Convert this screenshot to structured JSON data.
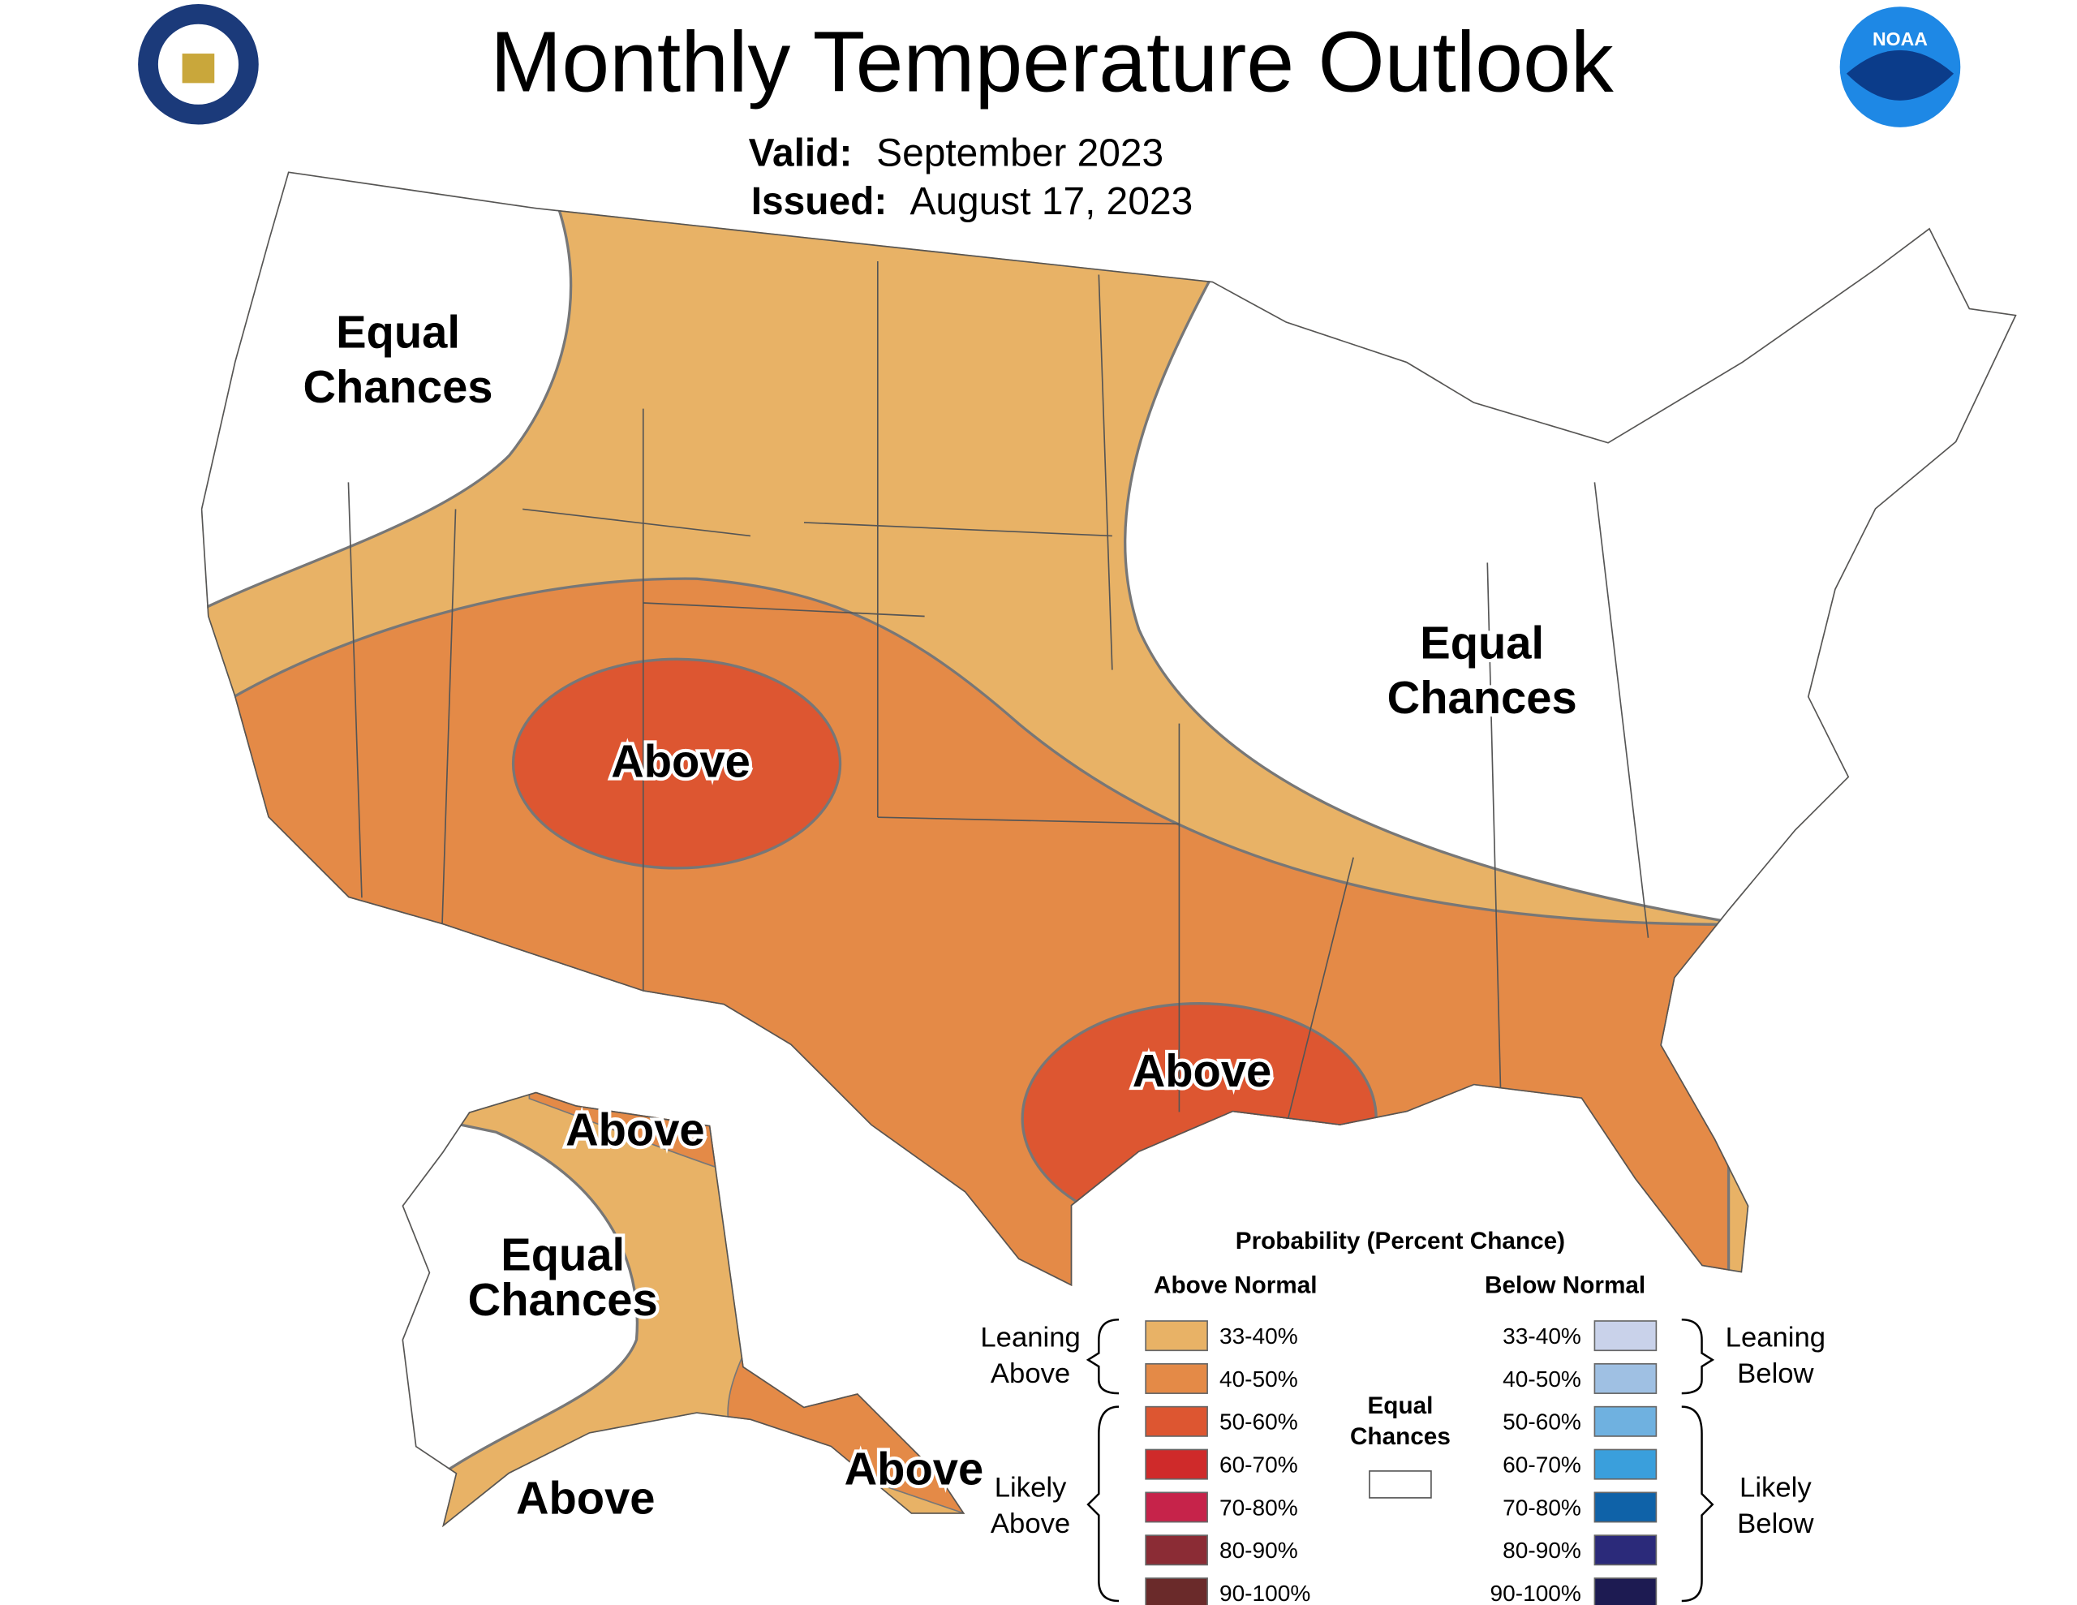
{
  "header": {
    "title": "Monthly Temperature Outlook",
    "valid_label": "Valid:",
    "valid_value": "September 2023",
    "issued_label": "Issued:",
    "issued_value": "August 17, 2023",
    "logo_right": "NOAA"
  },
  "map_labels": [
    "Equal Chances",
    "Above",
    "Equal Chances",
    "Above",
    "Above",
    "Equal Chances",
    "Above",
    "Above"
  ],
  "legend": {
    "title": "Probability (Percent Chance)",
    "above_header": "Above Normal",
    "below_header": "Below Normal",
    "above_items": [
      {
        "label": "33-40%",
        "color": "#e8b266"
      },
      {
        "label": "40-50%",
        "color": "#e48a47"
      },
      {
        "label": "50-60%",
        "color": "#dd5631"
      },
      {
        "label": "60-70%",
        "color": "#cf2a2a"
      },
      {
        "label": "70-80%",
        "color": "#c6234a"
      },
      {
        "label": "80-90%",
        "color": "#8b2c35"
      },
      {
        "label": "90-100%",
        "color": "#6a2a2a"
      }
    ],
    "below_items": [
      {
        "label": "33-40%",
        "color": "#c9d2ea"
      },
      {
        "label": "40-50%",
        "color": "#9fc0e3"
      },
      {
        "label": "50-60%",
        "color": "#6fb1e0"
      },
      {
        "label": "60-70%",
        "color": "#3a9fdc"
      },
      {
        "label": "70-80%",
        "color": "#0f62a8"
      },
      {
        "label": "80-90%",
        "color": "#2b2a7a"
      },
      {
        "label": "90-100%",
        "color": "#1d1b52"
      }
    ],
    "equal_chances": [
      "Equal",
      "Chances"
    ],
    "leaning_above": [
      "Leaning",
      "Above"
    ],
    "likely_above": [
      "Likely",
      "Above"
    ],
    "leaning_below": [
      "Leaning",
      "Below"
    ],
    "likely_below": [
      "Likely",
      "Below"
    ]
  }
}
